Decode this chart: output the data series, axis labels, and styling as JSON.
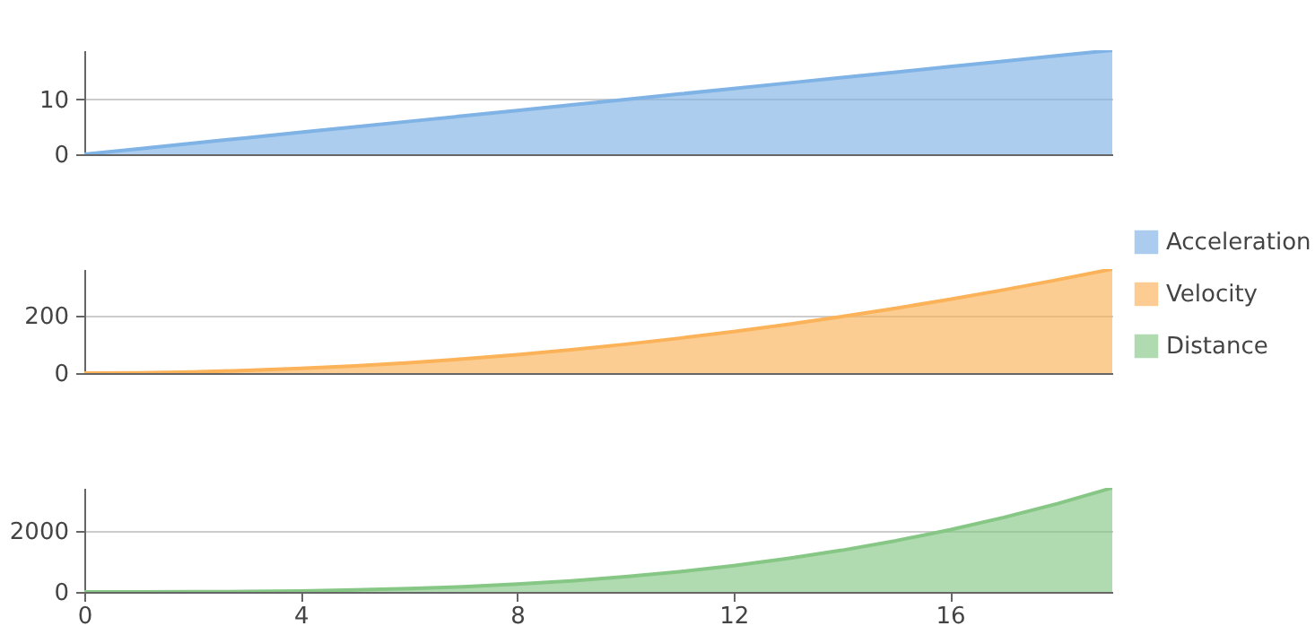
{
  "chart_data": [
    {
      "type": "area",
      "x": [
        0,
        1,
        2,
        3,
        4,
        5,
        6,
        7,
        8,
        9,
        10,
        11,
        12,
        13,
        14,
        15,
        16,
        17,
        18,
        19
      ],
      "xlim": [
        0,
        19
      ],
      "xticks": [
        0,
        4,
        8,
        12,
        16
      ],
      "ylim": [
        0,
        19
      ],
      "yticks": [
        0,
        10
      ],
      "grid": "y",
      "legend": "right",
      "tick_labels": "y",
      "series": [
        {
          "name": "Acceleration",
          "color": "#7fb2e5",
          "values": [
            0,
            1,
            2,
            3,
            4,
            5,
            6,
            7,
            8,
            9,
            10,
            11,
            12,
            13,
            14,
            15,
            16,
            17,
            18,
            19
          ]
        }
      ]
    },
    {
      "type": "area",
      "x": [
        0,
        1,
        2,
        3,
        4,
        5,
        6,
        7,
        8,
        9,
        10,
        11,
        12,
        13,
        14,
        15,
        16,
        17,
        18,
        19
      ],
      "xlim": [
        0,
        19
      ],
      "xticks": [
        0,
        4,
        8,
        12,
        16
      ],
      "ylim": [
        0,
        361
      ],
      "yticks": [
        0,
        200
      ],
      "grid": "y",
      "legend": "right",
      "tick_labels": "y",
      "series": [
        {
          "name": "Velocity",
          "color": "#fbb258",
          "values": [
            0,
            1,
            4,
            9,
            16,
            25,
            36,
            49,
            64,
            81,
            100,
            121,
            144,
            169,
            196,
            225,
            256,
            289,
            324,
            361
          ]
        }
      ]
    },
    {
      "type": "area",
      "x": [
        0,
        1,
        2,
        3,
        4,
        5,
        6,
        7,
        8,
        9,
        10,
        11,
        12,
        13,
        14,
        15,
        16,
        17,
        18,
        19
      ],
      "xlim": [
        0,
        19
      ],
      "xticks": [
        0,
        4,
        8,
        12,
        16
      ],
      "ylim": [
        0,
        3430
      ],
      "yticks": [
        0,
        2000
      ],
      "grid": "y",
      "legend": "right",
      "series": [
        {
          "name": "Distance",
          "color": "#86c786",
          "values": [
            0,
            1,
            4,
            14,
            32,
            63,
            108,
            172,
            256,
            365,
            500,
            666,
            864,
            1099,
            1372,
            1688,
            2048,
            2457,
            2916,
            3430
          ]
        }
      ]
    }
  ]
}
